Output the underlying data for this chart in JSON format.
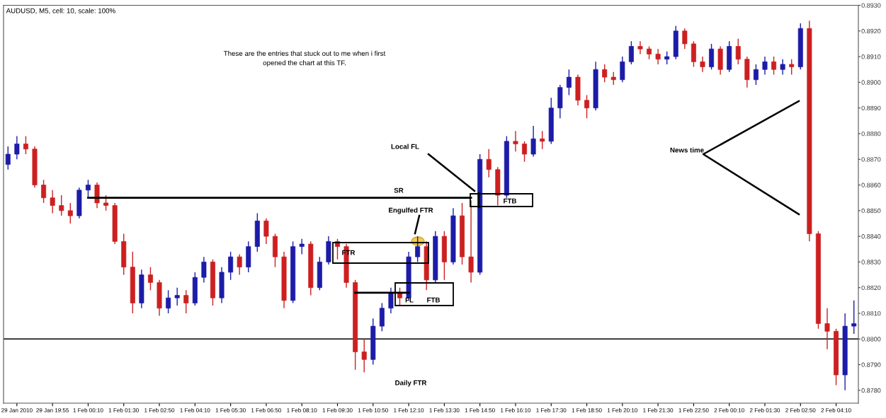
{
  "chart_data": {
    "type": "candlestick",
    "title": "AUDUSD, M5, cell: 10, scale: 100%",
    "categories": [
      null,
      "29 Jan 2010",
      null,
      null,
      null,
      "29 Jan 19:55",
      null,
      null,
      null,
      "1 Feb 00:10",
      null,
      null,
      null,
      "1 Feb 01:30",
      null,
      null,
      null,
      "1 Feb 02:50",
      null,
      null,
      null,
      "1 Feb 04:10",
      null,
      null,
      null,
      "1 Feb 05:30",
      null,
      null,
      null,
      "1 Feb 06:50",
      null,
      null,
      null,
      "1 Feb 08:10",
      null,
      null,
      null,
      "1 Feb 09:30",
      null,
      null,
      null,
      "1 Feb 10:50",
      null,
      null,
      null,
      "1 Feb 12:10",
      null,
      null,
      null,
      "1 Feb 13:30",
      null,
      null,
      null,
      "1 Feb 14:50",
      null,
      null,
      null,
      "1 Feb 16:10",
      null,
      null,
      null,
      "1 Feb 17:30",
      null,
      null,
      null,
      "1 Feb 18:50",
      null,
      null,
      null,
      "1 Feb 20:10",
      null,
      null,
      null,
      "1 Feb 21:30",
      null,
      null,
      null,
      "1 Feb 22:50",
      null,
      null,
      null,
      "2 Feb 00:10",
      null,
      null,
      null,
      "2 Feb 01:30",
      null,
      null,
      null,
      "2 Feb 02:50",
      null,
      null,
      null,
      "2 Feb 04:10",
      null,
      null
    ],
    "ohlc": [
      [
        0.8868,
        0.8875,
        0.8866,
        0.8872
      ],
      [
        0.8872,
        0.8879,
        0.887,
        0.8876
      ],
      [
        0.8876,
        0.8879,
        0.8872,
        0.8874
      ],
      [
        0.8874,
        0.8875,
        0.8859,
        0.886
      ],
      [
        0.886,
        0.8862,
        0.8853,
        0.8855
      ],
      [
        0.8855,
        0.8858,
        0.8849,
        0.8852
      ],
      [
        0.8852,
        0.8856,
        0.8848,
        0.885
      ],
      [
        0.885,
        0.8853,
        0.8845,
        0.8848
      ],
      [
        0.8848,
        0.8859,
        0.8847,
        0.8858
      ],
      [
        0.8858,
        0.8862,
        0.8855,
        0.886
      ],
      [
        0.886,
        0.8861,
        0.8851,
        0.8853
      ],
      [
        0.8853,
        0.8856,
        0.885,
        0.8852
      ],
      [
        0.8852,
        0.8853,
        0.8837,
        0.8838
      ],
      [
        0.8838,
        0.8841,
        0.8825,
        0.8828
      ],
      [
        0.8828,
        0.8834,
        0.881,
        0.8814
      ],
      [
        0.8814,
        0.8827,
        0.8812,
        0.8825
      ],
      [
        0.8825,
        0.8828,
        0.8819,
        0.8822
      ],
      [
        0.8822,
        0.8823,
        0.8809,
        0.8812
      ],
      [
        0.8812,
        0.8819,
        0.881,
        0.8816
      ],
      [
        0.8816,
        0.882,
        0.8813,
        0.8817
      ],
      [
        0.8817,
        0.8819,
        0.881,
        0.8814
      ],
      [
        0.8814,
        0.8826,
        0.8813,
        0.8824
      ],
      [
        0.8824,
        0.8832,
        0.8822,
        0.883
      ],
      [
        0.883,
        0.8831,
        0.8813,
        0.8816
      ],
      [
        0.8816,
        0.8828,
        0.8814,
        0.8826
      ],
      [
        0.8826,
        0.8834,
        0.8823,
        0.8832
      ],
      [
        0.8832,
        0.8833,
        0.8825,
        0.8828
      ],
      [
        0.8828,
        0.8838,
        0.8826,
        0.8836
      ],
      [
        0.8836,
        0.8849,
        0.8834,
        0.8846
      ],
      [
        0.8846,
        0.8847,
        0.8837,
        0.884
      ],
      [
        0.884,
        0.8841,
        0.8828,
        0.8832
      ],
      [
        0.8832,
        0.8834,
        0.8812,
        0.8815
      ],
      [
        0.8815,
        0.8838,
        0.8814,
        0.8836
      ],
      [
        0.8836,
        0.8839,
        0.8833,
        0.8837
      ],
      [
        0.8837,
        0.8838,
        0.8817,
        0.882
      ],
      [
        0.882,
        0.8832,
        0.8819,
        0.883
      ],
      [
        0.883,
        0.884,
        0.8829,
        0.8838
      ],
      [
        0.8838,
        0.8839,
        0.8831,
        0.8836
      ],
      [
        0.8836,
        0.8837,
        0.882,
        0.8822
      ],
      [
        0.8822,
        0.8823,
        0.8788,
        0.8795
      ],
      [
        0.8795,
        0.88,
        0.8787,
        0.8792
      ],
      [
        0.8792,
        0.8808,
        0.879,
        0.8805
      ],
      [
        0.8805,
        0.8814,
        0.8803,
        0.8812
      ],
      [
        0.8812,
        0.882,
        0.881,
        0.8818
      ],
      [
        0.8818,
        0.882,
        0.8813,
        0.8816
      ],
      [
        0.8816,
        0.8834,
        0.8815,
        0.8832
      ],
      [
        0.8832,
        0.884,
        0.883,
        0.8836
      ],
      [
        0.8836,
        0.8838,
        0.8819,
        0.8823
      ],
      [
        0.8823,
        0.8842,
        0.8822,
        0.884
      ],
      [
        0.884,
        0.8842,
        0.8823,
        0.883
      ],
      [
        0.883,
        0.8851,
        0.8829,
        0.8848
      ],
      [
        0.8848,
        0.8853,
        0.8829,
        0.8832
      ],
      [
        0.8832,
        0.8854,
        0.8822,
        0.8826
      ],
      [
        0.8826,
        0.8872,
        0.8825,
        0.887
      ],
      [
        0.887,
        0.8874,
        0.8863,
        0.8866
      ],
      [
        0.8866,
        0.8867,
        0.8852,
        0.8856
      ],
      [
        0.8856,
        0.8879,
        0.8855,
        0.8877
      ],
      [
        0.8877,
        0.8881,
        0.8873,
        0.8876
      ],
      [
        0.8876,
        0.8877,
        0.8869,
        0.8872
      ],
      [
        0.8872,
        0.8883,
        0.8871,
        0.8878
      ],
      [
        0.8878,
        0.8881,
        0.8874,
        0.8877
      ],
      [
        0.8877,
        0.8894,
        0.8876,
        0.889
      ],
      [
        0.889,
        0.8899,
        0.8886,
        0.8898
      ],
      [
        0.8898,
        0.8905,
        0.8895,
        0.8902
      ],
      [
        0.8902,
        0.8903,
        0.8891,
        0.8893
      ],
      [
        0.8893,
        0.8895,
        0.8886,
        0.889
      ],
      [
        0.889,
        0.8908,
        0.8889,
        0.8905
      ],
      [
        0.8905,
        0.8907,
        0.89,
        0.8902
      ],
      [
        0.8902,
        0.8904,
        0.8899,
        0.8901
      ],
      [
        0.8901,
        0.891,
        0.89,
        0.8908
      ],
      [
        0.8908,
        0.8916,
        0.8907,
        0.8914
      ],
      [
        0.8914,
        0.8916,
        0.8911,
        0.8913
      ],
      [
        0.8913,
        0.8914,
        0.8909,
        0.8911
      ],
      [
        0.8911,
        0.8913,
        0.8907,
        0.8909
      ],
      [
        0.8909,
        0.8912,
        0.8907,
        0.891
      ],
      [
        0.891,
        0.8922,
        0.8909,
        0.892
      ],
      [
        0.892,
        0.8921,
        0.8913,
        0.8915
      ],
      [
        0.8915,
        0.8916,
        0.8906,
        0.8908
      ],
      [
        0.8908,
        0.891,
        0.8904,
        0.8906
      ],
      [
        0.8906,
        0.8915,
        0.8905,
        0.8913
      ],
      [
        0.8913,
        0.8914,
        0.8903,
        0.8905
      ],
      [
        0.8905,
        0.8916,
        0.8904,
        0.8914
      ],
      [
        0.8914,
        0.8917,
        0.8907,
        0.8909
      ],
      [
        0.8909,
        0.891,
        0.8898,
        0.8901
      ],
      [
        0.8901,
        0.8907,
        0.8899,
        0.8905
      ],
      [
        0.8905,
        0.891,
        0.8903,
        0.8908
      ],
      [
        0.8908,
        0.891,
        0.8903,
        0.8905
      ],
      [
        0.8905,
        0.8909,
        0.8903,
        0.8907
      ],
      [
        0.8907,
        0.8909,
        0.8903,
        0.8906
      ],
      [
        0.8906,
        0.8923,
        0.8905,
        0.8921
      ],
      [
        0.8921,
        0.8924,
        0.8838,
        0.8841
      ],
      [
        0.8841,
        0.8842,
        0.8804,
        0.8806
      ],
      [
        0.8806,
        0.8812,
        0.8796,
        0.8803
      ],
      [
        0.8803,
        0.8804,
        0.8782,
        0.8786
      ],
      [
        0.8786,
        0.881,
        0.878,
        0.8805
      ],
      [
        0.8805,
        0.8815,
        0.8802,
        0.8806
      ]
    ],
    "colors": [
      "#1c1ca8",
      "#1c1ca8",
      "#cc2020",
      "#cc2020",
      "#cc2020",
      "#cc2020",
      "#cc2020",
      "#cc2020",
      "#1c1ca8",
      "#1c1ca8",
      "#cc2020",
      "#cc2020",
      "#cc2020",
      "#cc2020",
      "#cc2020",
      "#1c1ca8",
      "#cc2020",
      "#cc2020",
      "#1c1ca8",
      "#1c1ca8",
      "#cc2020",
      "#1c1ca8",
      "#1c1ca8",
      "#cc2020",
      "#1c1ca8",
      "#1c1ca8",
      "#cc2020",
      "#1c1ca8",
      "#1c1ca8",
      "#cc2020",
      "#cc2020",
      "#cc2020",
      "#1c1ca8",
      "#1c1ca8",
      "#cc2020",
      "#1c1ca8",
      "#1c1ca8",
      "#cc2020",
      "#cc2020",
      "#cc2020",
      "#cc2020",
      "#1c1ca8",
      "#1c1ca8",
      "#1c1ca8",
      "#cc2020",
      "#1c1ca8",
      "#1c1ca8",
      "#cc2020",
      "#1c1ca8",
      "#cc2020",
      "#1c1ca8",
      "#cc2020",
      "#cc2020",
      "#1c1ca8",
      "#cc2020",
      "#cc2020",
      "#1c1ca8",
      "#cc2020",
      "#cc2020",
      "#1c1ca8",
      "#cc2020",
      "#1c1ca8",
      "#1c1ca8",
      "#1c1ca8",
      "#cc2020",
      "#cc2020",
      "#1c1ca8",
      "#cc2020",
      "#cc2020",
      "#1c1ca8",
      "#1c1ca8",
      "#cc2020",
      "#cc2020",
      "#cc2020",
      "#1c1ca8",
      "#1c1ca8",
      "#cc2020",
      "#cc2020",
      "#cc2020",
      "#1c1ca8",
      "#cc2020",
      "#1c1ca8",
      "#cc2020",
      "#cc2020",
      "#1c1ca8",
      "#1c1ca8",
      "#cc2020",
      "#1c1ca8",
      "#cc2020",
      "#1c1ca8",
      "#cc2020",
      "#cc2020",
      "#cc2020",
      "#cc2020",
      "#1c1ca8",
      "#1c1ca8"
    ],
    "series": [
      {
        "type": "line",
        "color": "#000000",
        "values": [
          null,
          null,
          null,
          null,
          null,
          null,
          null,
          null,
          null,
          0.8855,
          0.8855,
          0.8855,
          0.8855,
          0.8855,
          0.8855,
          0.8855,
          0.8855,
          0.8855,
          0.8855,
          0.8855,
          0.8855,
          0.8855,
          0.8855,
          0.8855,
          0.8855,
          0.8855,
          0.8855,
          0.8855,
          0.8855,
          0.8855,
          0.8855,
          0.8855,
          0.8855,
          0.8855,
          0.8855,
          0.8855,
          0.8855,
          0.8855,
          0.8855,
          0.8855,
          0.8855,
          0.8855,
          0.8855,
          0.8855,
          0.8855,
          0.8855,
          0.8855,
          0.8855,
          0.8855,
          0.8855,
          0.8855,
          0.8855,
          0.8855,
          null,
          null,
          null,
          null,
          null,
          null,
          null,
          null,
          null,
          null,
          null,
          null,
          null,
          null,
          null,
          null,
          null,
          null,
          null,
          null,
          null,
          null,
          null,
          null,
          null,
          null,
          null,
          null,
          null,
          null,
          null,
          null,
          null,
          null,
          null,
          null,
          null,
          null,
          null,
          null,
          null,
          null,
          null
        ]
      },
      {
        "type": "line",
        "color": "#000000",
        "values": [
          null,
          null,
          null,
          null,
          null,
          null,
          null,
          null,
          null,
          null,
          null,
          null,
          null,
          null,
          null,
          null,
          null,
          null,
          null,
          null,
          null,
          null,
          null,
          null,
          null,
          null,
          null,
          null,
          null,
          null,
          null,
          null,
          null,
          null,
          null,
          null,
          null,
          null,
          null,
          0.8818,
          0.8818,
          0.8818,
          0.8818,
          0.8818,
          0.8818,
          0.8818,
          null,
          null,
          null,
          null,
          null,
          null,
          null,
          null,
          null,
          null,
          null,
          null,
          null,
          null,
          null,
          null,
          null,
          null,
          null,
          null,
          null,
          null,
          null,
          null,
          null,
          null,
          null,
          null,
          null,
          null,
          null,
          null,
          null,
          null,
          null,
          null,
          null,
          null,
          null,
          null,
          null,
          null,
          null,
          null,
          null,
          null,
          null,
          null,
          null,
          null
        ]
      }
    ],
    "ref_lines": [
      {
        "axis": "y",
        "value": 0.88,
        "color": "#000000"
      }
    ],
    "ylim": [
      0.8775,
      0.893
    ],
    "yticks": [
      {
        "value": 0.878,
        "label": "0.8780"
      },
      {
        "value": 0.879,
        "label": "0.8790"
      },
      {
        "value": 0.88,
        "label": "0.8800"
      },
      {
        "value": 0.881,
        "label": "0.8810"
      },
      {
        "value": 0.882,
        "label": "0.8820"
      },
      {
        "value": 0.883,
        "label": "0.8830"
      },
      {
        "value": 0.884,
        "label": "0.8840"
      },
      {
        "value": 0.885,
        "label": "0.8850"
      },
      {
        "value": 0.886,
        "label": "0.8860"
      },
      {
        "value": 0.887,
        "label": "0.8870"
      },
      {
        "value": 0.888,
        "label": "0.8880"
      },
      {
        "value": 0.889,
        "label": "0.8890"
      },
      {
        "value": 0.89,
        "label": "0.8900"
      },
      {
        "value": 0.891,
        "label": "0.8910"
      },
      {
        "value": 0.892,
        "label": "0.8920"
      },
      {
        "value": 0.893,
        "label": "0.8930"
      }
    ],
    "annotations": [
      "These are the entries that stuck out to me when i first\nopened the chart at this TF.",
      "Local FL",
      "SR",
      "Engulfed FTR",
      "FTR",
      "FL",
      "FTB",
      "FTB",
      "Daily FTR",
      "News time"
    ]
  }
}
